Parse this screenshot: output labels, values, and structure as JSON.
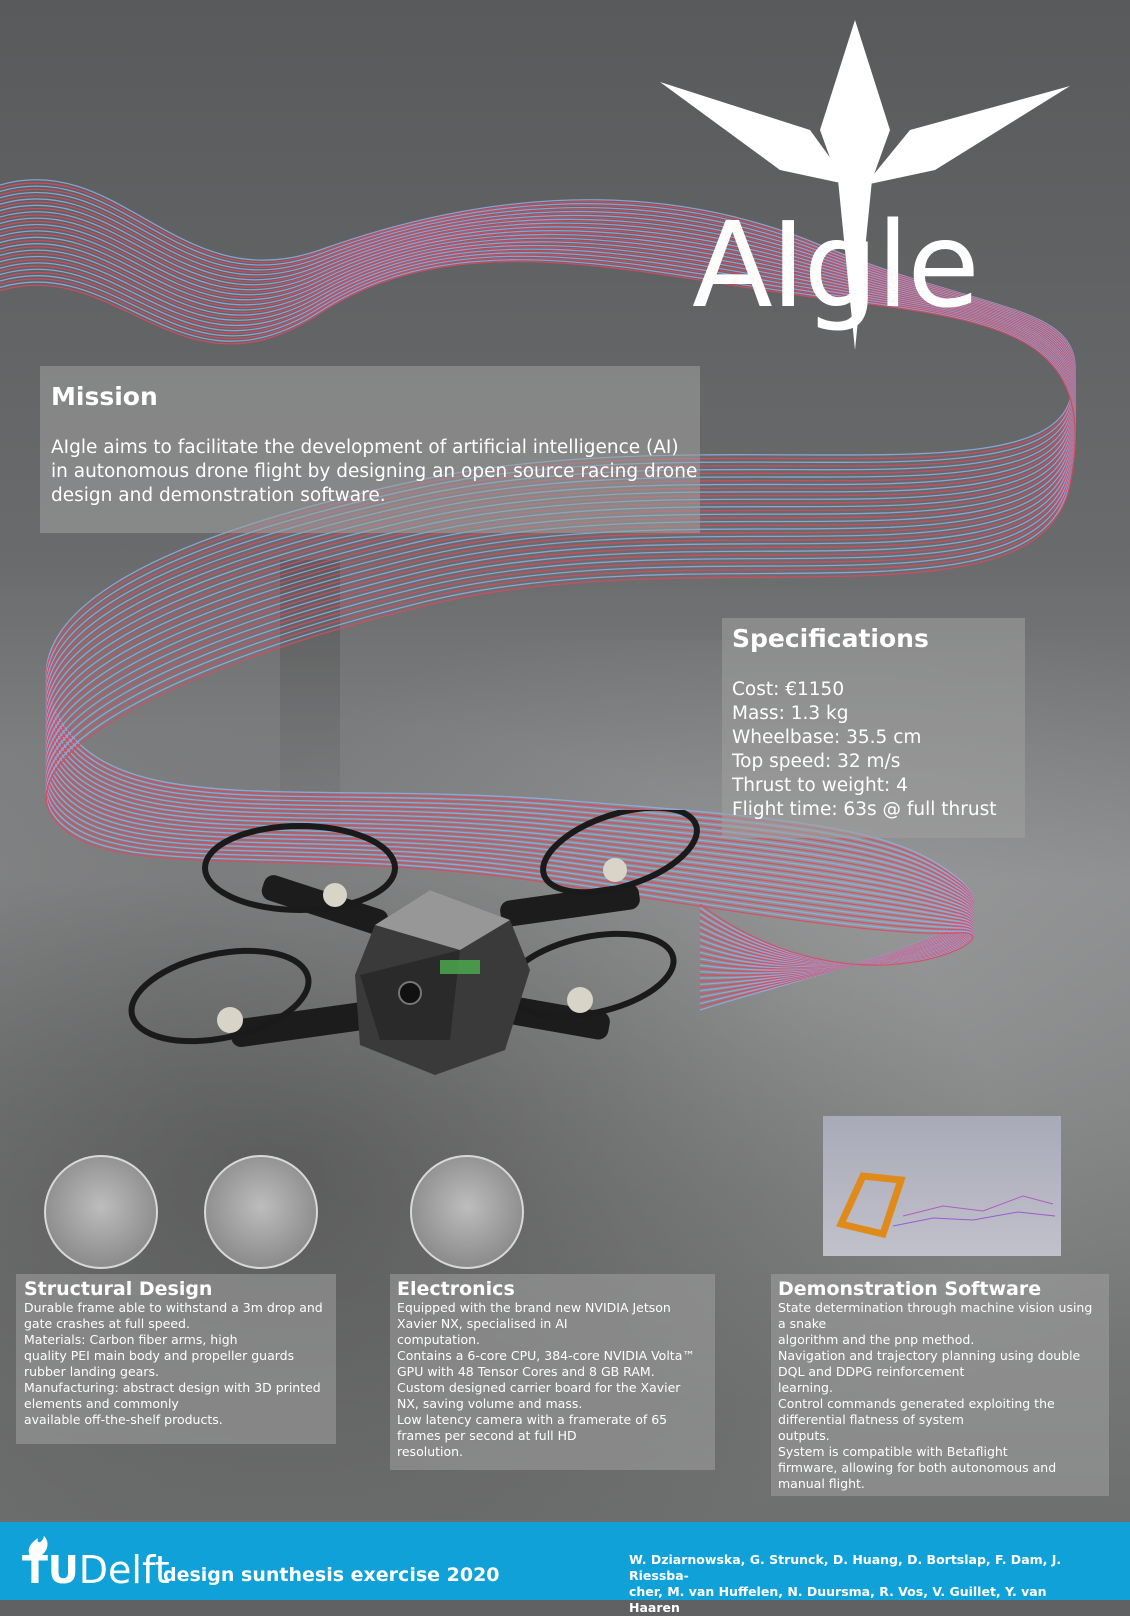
{
  "logo": {
    "text": "AIgle"
  },
  "mission": {
    "title": "Mission",
    "text": "AIgle aims to facilitate the development of artificial intelligence (AI) in autonomous drone flight by designing an open source racing drone design and demonstration software."
  },
  "specifications": {
    "title": "Specifications",
    "items": [
      "Cost: €1150",
      "Mass: 1.3 kg",
      "Wheelbase: 35.5 cm",
      "Top speed: 32 m/s",
      "Thrust to weight: 4",
      "Flight time: 63s @ full thrust"
    ]
  },
  "structural": {
    "title": "Structural Design",
    "lines": [
      "Durable frame able to withstand a 3m drop and",
      "gate crashes at full speed.",
      "Materials: Carbon fiber arms, high",
      "quality PEI main body and propeller guards",
      "rubber landing gears.",
      "Manufacturing: abstract design with 3D printed",
      "elements and commonly",
      "available off-the-shelf products."
    ]
  },
  "electronics": {
    "title": "Electronics",
    "lines": [
      "Equipped with the brand new NVIDIA Jetson",
      "Xavier NX, specialised in AI",
      "computation.",
      "Contains a 6-core CPU, 384-core NVIDIA Volta™",
      "GPU with 48 Tensor Cores and 8 GB RAM.",
      "Custom designed carrier board for the Xavier",
      "NX, saving volume and mass.",
      "Low latency camera with a framerate of 65",
      "frames per second at full HD",
      "resolution."
    ]
  },
  "demo": {
    "title": "Demonstration Software",
    "lines": [
      "State determination through machine vision using",
      "a snake",
      "algorithm and the pnp method.",
      "Navigation and trajectory planning using double",
      "DQL and DDPG reinforcement",
      "learning.",
      "Control commands generated exploiting the",
      "differential flatness of system",
      "outputs.",
      "System is compatible with Betaflight",
      "firmware, allowing for both autonomous and",
      "manual flight."
    ]
  },
  "footer": {
    "tu_bold": "TU",
    "tu_rest": "Delft",
    "title": "design sunthesis exercise 2020",
    "authors_line1": "W. Dziarnowska, G. Strunck, D. Huang, D. Bortslap, F. Dam, J. Riessba-",
    "authors_line2": "cher, M. van Huffelen, N. Duursma, R. Vos, V. Guillet, Y. van Haaren"
  },
  "colors": {
    "footer_bg": "#10a1d8",
    "ribbon_red": "#e0485f",
    "ribbon_blue": "#8fb0e6",
    "panel_bg": "rgba(160,160,160,0.55)"
  },
  "icons": [
    "eagle-logo-icon",
    "tudelft-flame-icon"
  ]
}
